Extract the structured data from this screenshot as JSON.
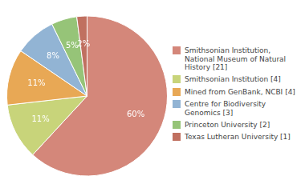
{
  "chart_data": {
    "type": "pie",
    "categories": [
      "Smithsonian Institution,\nNational Museum of Natural\nHistory [21]",
      "Smithsonian Institution [4]",
      "Mined from GenBank, NCBI [4]",
      "Centre for Biodiversity\nGenomics [3]",
      "Princeton University [2]",
      "Texas Lutheran University [1]"
    ],
    "values": [
      60,
      11,
      11,
      8,
      5,
      2
    ],
    "value_labels": [
      "60%",
      "11%",
      "11%",
      "8%",
      "5%",
      "2%"
    ],
    "colors": [
      "#d4877a",
      "#c8d47a",
      "#e8a855",
      "#92b4d4",
      "#96c478",
      "#c07060"
    ],
    "data_labels": true,
    "legend": "right"
  }
}
